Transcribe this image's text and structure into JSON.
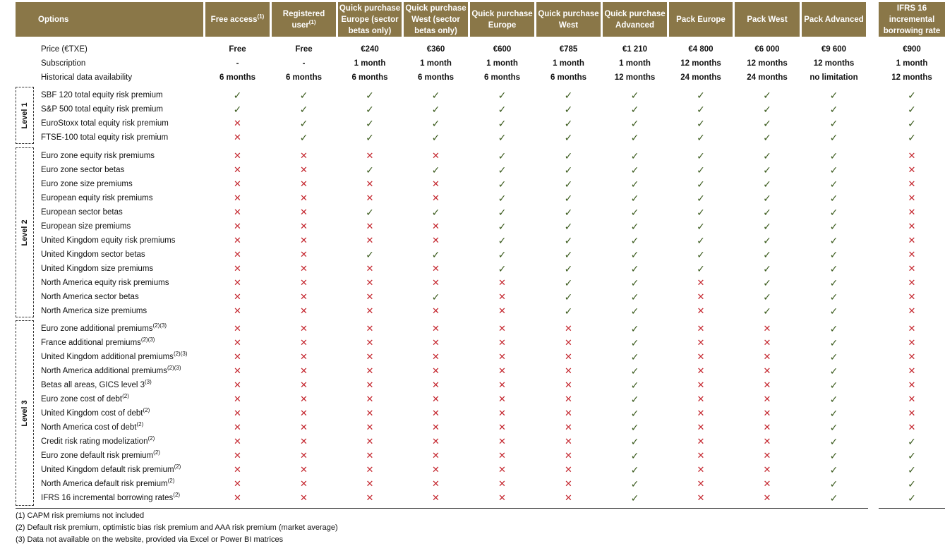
{
  "columns": [
    {
      "label": "Options",
      "sup": ""
    },
    {
      "label": "Free access",
      "sup": "(1)"
    },
    {
      "label": "Registered user",
      "sup": "(1)"
    },
    {
      "label": "Quick purchase Europe (sector betas only)",
      "sup": ""
    },
    {
      "label": "Quick purchase West (sector betas only)",
      "sup": ""
    },
    {
      "label": "Quick purchase Europe",
      "sup": ""
    },
    {
      "label": "Quick purchase West",
      "sup": ""
    },
    {
      "label": "Quick purchase Advanced",
      "sup": ""
    },
    {
      "label": "Pack Europe",
      "sup": ""
    },
    {
      "label": "Pack West",
      "sup": ""
    },
    {
      "label": "Pack Advanced",
      "sup": ""
    },
    {
      "label": "IFRS 16 incremental borrowing rate",
      "sup": ""
    }
  ],
  "info_rows": [
    {
      "label": "Price (€TXE)",
      "values": [
        "Free",
        "Free",
        "€240",
        "€360",
        "€600",
        "€785",
        "€1 210",
        "€4 800",
        "€6 000",
        "€9 600",
        "€900"
      ]
    },
    {
      "label": "Subscription",
      "values": [
        "-",
        "-",
        "1 month",
        "1 month",
        "1 month",
        "1 month",
        "1 month",
        "12 months",
        "12 months",
        "12 months",
        "1 month"
      ]
    },
    {
      "label": "Historical data availability",
      "values": [
        "6 months",
        "6 months",
        "6 months",
        "6 months",
        "6 months",
        "6 months",
        "12 months",
        "24 months",
        "24 months",
        "no limitation",
        "12 months"
      ]
    }
  ],
  "symbols": {
    "yes": "✓",
    "no": "✕"
  },
  "colors": {
    "header_bg": "#8a7748",
    "check": "#3a5a1c",
    "cross": "#c4262e"
  },
  "levels": [
    {
      "name": "Level 1",
      "rows": [
        {
          "label": "SBF 120 total equity risk premium",
          "sup": "",
          "marks": "11111111111"
        },
        {
          "label": "S&P 500 total equity risk premium",
          "sup": "",
          "marks": "11111111111"
        },
        {
          "label": "EuroStoxx total equity risk premium",
          "sup": "",
          "marks": "01111111111"
        },
        {
          "label": "FTSE-100 total equity risk premium",
          "sup": "",
          "marks": "01111111111"
        }
      ]
    },
    {
      "name": "Level 2",
      "rows": [
        {
          "label": "Euro zone equity risk premiums",
          "sup": "",
          "marks": "00001111110"
        },
        {
          "label": "Euro zone sector betas",
          "sup": "",
          "marks": "00111111110"
        },
        {
          "label": "Euro zone size premiums",
          "sup": "",
          "marks": "00001111110"
        },
        {
          "label": "European equity risk premiums",
          "sup": "",
          "marks": "00001111110"
        },
        {
          "label": "European sector betas",
          "sup": "",
          "marks": "00111111110"
        },
        {
          "label": "European size premiums",
          "sup": "",
          "marks": "00001111110"
        },
        {
          "label": "United Kingdom equity risk premiums",
          "sup": "",
          "marks": "00001111110"
        },
        {
          "label": "United Kingdom sector betas",
          "sup": "",
          "marks": "00111111110"
        },
        {
          "label": "United Kingdom size premiums",
          "sup": "",
          "marks": "00001111110"
        },
        {
          "label": "North America equity risk premiums",
          "sup": "",
          "marks": "00000110110"
        },
        {
          "label": "North America sector betas",
          "sup": "",
          "marks": "00010110110"
        },
        {
          "label": "North America size premiums",
          "sup": "",
          "marks": "00000110110"
        }
      ]
    },
    {
      "name": "Level 3",
      "rows": [
        {
          "label": "Euro zone additional premiums",
          "sup": "(2)(3)",
          "marks": "00000010010"
        },
        {
          "label": "France additional premiums",
          "sup": "(2)(3)",
          "marks": "00000010010"
        },
        {
          "label": "United Kingdom additional premiums",
          "sup": "(2)(3)",
          "marks": "00000010010"
        },
        {
          "label": "North America additional premiums",
          "sup": "(2)(3)",
          "marks": "00000010010"
        },
        {
          "label": "Betas all areas, GICS level 3",
          "sup": "(3)",
          "marks": "00000010010"
        },
        {
          "label": "Euro zone cost of debt",
          "sup": "(2)",
          "marks": "00000010010"
        },
        {
          "label": "United Kingdom cost of debt",
          "sup": "(2)",
          "marks": "00000010010"
        },
        {
          "label": "North America cost of debt",
          "sup": "(2)",
          "marks": "00000010010"
        },
        {
          "label": "Credit risk rating modelization",
          "sup": "(2)",
          "marks": "00000010011"
        },
        {
          "label": "Euro zone default risk premium",
          "sup": "(2)",
          "marks": "00000010011"
        },
        {
          "label": "United Kingdom default risk premium",
          "sup": "(2)",
          "marks": "00000010011"
        },
        {
          "label": "North America default risk premium",
          "sup": "(2)",
          "marks": "00000010011"
        },
        {
          "label": "IFRS 16 incremental borrowing rates",
          "sup": "(2)",
          "marks": "00000010011"
        }
      ]
    }
  ],
  "footnotes": [
    "(1) CAPM risk premiums not included",
    "(2) Default risk premium, optimistic bias risk premium and AAA risk premium (market average)",
    "(3) Data not available on the website, provided via Excel or Power BI matrices"
  ]
}
